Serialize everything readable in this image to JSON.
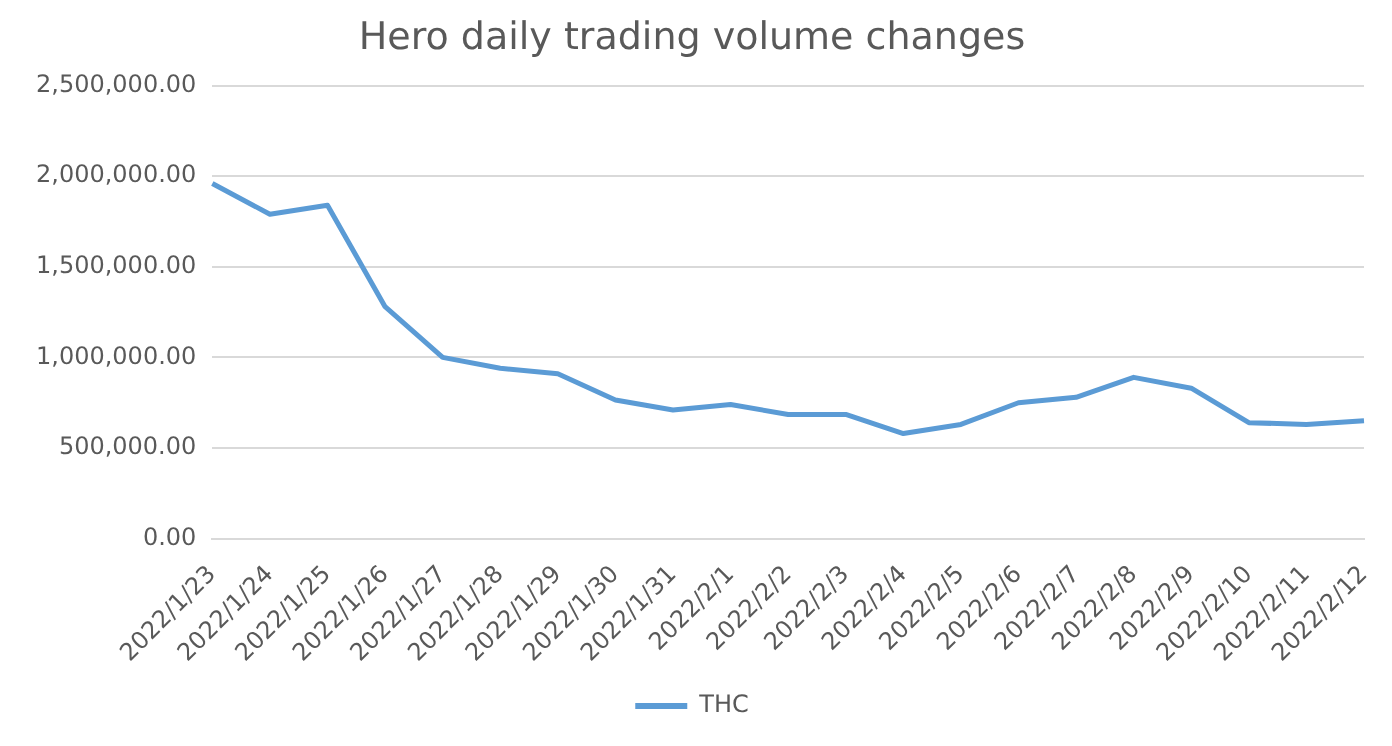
{
  "chart_data": {
    "type": "line",
    "title": "Hero daily trading volume changes",
    "categories": [
      "2022/1/23",
      "2022/1/24",
      "2022/1/25",
      "2022/1/26",
      "2022/1/27",
      "2022/1/28",
      "2022/1/29",
      "2022/1/30",
      "2022/1/31",
      "2022/2/1",
      "2022/2/2",
      "2022/2/3",
      "2022/2/4",
      "2022/2/5",
      "2022/2/6",
      "2022/2/7",
      "2022/2/8",
      "2022/2/9",
      "2022/2/10",
      "2022/2/11",
      "2022/2/12"
    ],
    "series": [
      {
        "name": "THC",
        "color": "#5b9bd5",
        "values": [
          1960000,
          1790000,
          1840000,
          1280000,
          1000000,
          940000,
          910000,
          765000,
          710000,
          740000,
          685000,
          685000,
          580000,
          630000,
          750000,
          780000,
          890000,
          830000,
          640000,
          630000,
          650000
        ]
      }
    ],
    "ylim": [
      0,
      2500000
    ],
    "yticks": [
      {
        "value": 0,
        "label": "0.00"
      },
      {
        "value": 500000,
        "label": "500,000.00"
      },
      {
        "value": 1000000,
        "label": "1,000,000.00"
      },
      {
        "value": 1500000,
        "label": "1,500,000.00"
      },
      {
        "value": 2000000,
        "label": "2,000,000.00"
      },
      {
        "value": 2500000,
        "label": "2,500,000.00"
      }
    ],
    "grid": "y",
    "legend": "bottom",
    "marker": "none",
    "line_style": "solid"
  }
}
